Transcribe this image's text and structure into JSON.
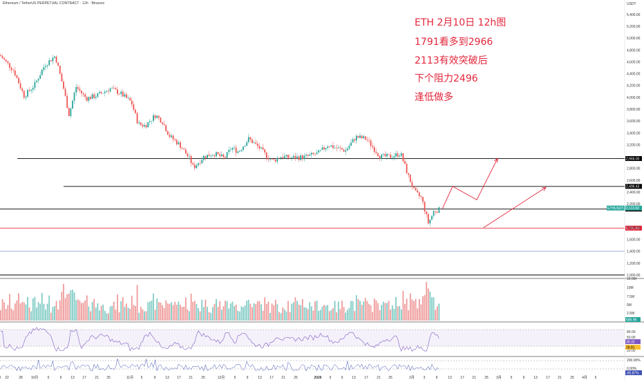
{
  "header": {
    "symbol_line": "Ethereum / TetherUS PERPETUAL CONTRACT · 12h · Binance",
    "currency": "USDT"
  },
  "annotations": [
    "ETH 2月10日 12h图",
    "1791看多到2966",
    "2113有效突破后",
    "下个阻力2496",
    "逢低做多"
  ],
  "colors": {
    "up": "#26a69a",
    "down": "#ef5350",
    "annotation": "#e2263b",
    "rsi": "#7e57c2"
  },
  "chart_data": {
    "type": "candlestick",
    "price_axis_ticks": [
      "5,400.00",
      "5,200.00",
      "5,000.00",
      "4,800.00",
      "4,600.00",
      "4,400.00",
      "4,200.00",
      "4,000.00",
      "3,800.00",
      "3,600.00",
      "3,400.00",
      "3,200.00",
      "2,800.00",
      "2,600.00",
      "2,400.00",
      "2,200.00",
      "1,800.00",
      "1,600.00",
      "1,400.00",
      "1,200.00",
      "1,000.00"
    ],
    "price_axis_ticks_values": [
      5400,
      5200,
      5000,
      4800,
      4600,
      4400,
      4200,
      4000,
      3800,
      3600,
      3400,
      3200,
      2800,
      2600,
      2400,
      2200,
      1800,
      1600,
      1400,
      1200,
      1000
    ],
    "ylim": [
      1000,
      5550
    ],
    "horizontal_levels": [
      {
        "value": 2966,
        "label": "2,966.00",
        "color": "#000000"
      },
      {
        "value": 2496,
        "label": "2,496.43",
        "color": "#000000"
      },
      {
        "value": 2113,
        "label": "2,113.59",
        "color": "#000000"
      },
      {
        "value": 1791,
        "label": "1,791.40",
        "color": "#e2263b"
      },
      {
        "value": 1400,
        "label": "",
        "color": "#90a4d4"
      },
      {
        "value": 1000,
        "label": "",
        "color": "#000000"
      }
    ],
    "current_price": {
      "label": "ETHUSDT.P",
      "value": "2,113.60"
    },
    "x_ticks": [
      "22",
      "28",
      "10月",
      "5",
      "9",
      "13",
      "17",
      "21",
      "25",
      "11月",
      "5",
      "9",
      "13",
      "17",
      "21",
      "25",
      "12月",
      "5",
      "9",
      "13",
      "17",
      "21",
      "25",
      "2026",
      "5",
      "9",
      "13",
      "17",
      "21",
      "25",
      "2月",
      "3",
      "9",
      "13",
      "17",
      "21",
      "25",
      "3月",
      "5",
      "9",
      "13",
      "17",
      "21",
      "25",
      "4月",
      "5",
      "9"
    ],
    "volume_ticks": [
      "12.5M",
      "10M",
      "7.5M",
      "5M",
      "2.5M"
    ],
    "volume_current": "589.9K",
    "rsi_ticks": [
      "80.00",
      "50.00",
      "20.00"
    ],
    "rsi_values": [
      "39.32",
      "28.81"
    ],
    "percent_ticks": [
      "200.00%",
      "0.00%"
    ],
    "percent_current": "-95.87%",
    "series": [
      {
        "name": "ETHUSDT.P",
        "ohlc_path": [
          [
            0,
            4710
          ],
          [
            20,
            4450
          ],
          [
            35,
            4020
          ],
          [
            50,
            4210
          ],
          [
            65,
            4550
          ],
          [
            80,
            4700
          ],
          [
            92,
            4150
          ],
          [
            100,
            3700
          ],
          [
            110,
            4180
          ],
          [
            125,
            3980
          ],
          [
            140,
            4030
          ],
          [
            160,
            4150
          ],
          [
            175,
            4060
          ],
          [
            190,
            3920
          ],
          [
            200,
            3550
          ],
          [
            210,
            3520
          ],
          [
            225,
            3700
          ],
          [
            235,
            3590
          ],
          [
            245,
            3350
          ],
          [
            260,
            3200
          ],
          [
            275,
            2950
          ],
          [
            280,
            2810
          ],
          [
            295,
            3000
          ],
          [
            310,
            3050
          ],
          [
            325,
            2970
          ],
          [
            335,
            3150
          ],
          [
            345,
            3080
          ],
          [
            360,
            3300
          ],
          [
            375,
            3150
          ],
          [
            385,
            3020
          ],
          [
            395,
            2920
          ],
          [
            405,
            3000
          ],
          [
            420,
            2980
          ],
          [
            440,
            2990
          ],
          [
            460,
            3050
          ],
          [
            475,
            3200
          ],
          [
            485,
            3150
          ],
          [
            500,
            3100
          ],
          [
            515,
            3330
          ],
          [
            530,
            3300
          ],
          [
            540,
            3150
          ],
          [
            550,
            3000
          ],
          [
            565,
            3000
          ],
          [
            580,
            3050
          ],
          [
            590,
            2700
          ],
          [
            600,
            2400
          ],
          [
            610,
            2300
          ],
          [
            620,
            1870
          ],
          [
            628,
            2080
          ],
          [
            640,
            2113
          ]
        ]
      }
    ],
    "projection_path": [
      [
        640,
        2113
      ],
      [
        655,
        2496
      ],
      [
        690,
        2270
      ],
      [
        720,
        2966
      ]
    ],
    "projection_path2": [
      [
        700,
        1800
      ],
      [
        790,
        2480
      ]
    ]
  }
}
